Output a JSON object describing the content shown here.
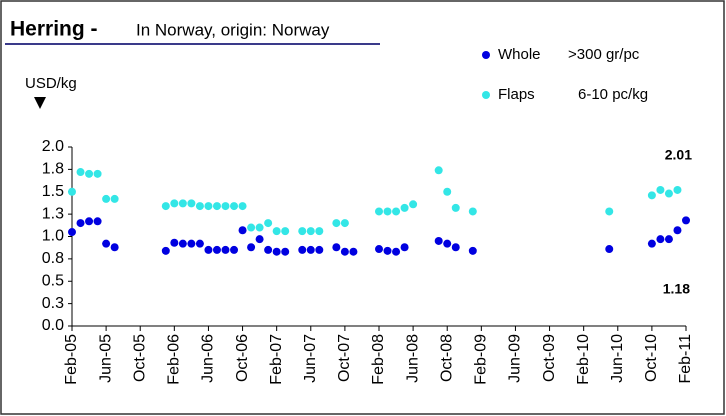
{
  "chart_data": {
    "type": "scatter",
    "title": "Herring -",
    "subtitle": "In Norway, origin: Norway",
    "y_label": "USD/kg",
    "annotations": [
      "2.01",
      "1.18"
    ],
    "categories": [
      "Feb-05",
      null,
      null,
      null,
      "Jun-05",
      null,
      null,
      null,
      "Oct-05",
      null,
      null,
      null,
      "Feb-06",
      null,
      null,
      null,
      "Jun-06",
      null,
      null,
      null,
      "Oct-06",
      null,
      null,
      null,
      "Feb-07",
      null,
      null,
      null,
      "Jun-07",
      null,
      null,
      null,
      "Oct-07",
      null,
      null,
      null,
      "Feb-08",
      null,
      null,
      null,
      "Jun-08",
      null,
      null,
      null,
      "Oct-08",
      null,
      null,
      null,
      "Feb-09",
      null,
      null,
      null,
      "Jun-09",
      null,
      null,
      null,
      "Oct-09",
      null,
      null,
      null,
      "Feb-10",
      null,
      null,
      null,
      "Jun-10",
      null,
      null,
      null,
      "Oct-10",
      null,
      null,
      null,
      "Feb-11"
    ],
    "series": [
      {
        "name": "Whole",
        "note": ">300 gr/pc",
        "color": "#0000e0",
        "values": [
          1.05,
          1.15,
          1.17,
          1.17,
          0.92,
          0.88,
          null,
          null,
          null,
          null,
          null,
          0.84,
          0.93,
          0.92,
          0.92,
          0.92,
          0.85,
          0.85,
          0.85,
          0.85,
          1.07,
          0.88,
          0.97,
          0.85,
          0.83,
          0.83,
          null,
          0.85,
          0.85,
          0.85,
          null,
          0.88,
          0.83,
          0.83,
          null,
          null,
          0.86,
          0.84,
          0.83,
          0.88,
          null,
          null,
          null,
          0.95,
          0.92,
          0.88,
          null,
          0.84,
          null,
          null,
          null,
          null,
          null,
          null,
          null,
          null,
          null,
          null,
          null,
          null,
          null,
          null,
          null,
          0.86,
          null,
          null,
          null,
          null,
          0.92,
          0.97,
          0.97,
          1.07,
          1.18
        ]
      },
      {
        "name": "Flaps",
        "note": "6-10 pc/kg",
        "color": "#33e6e6",
        "values": [
          1.5,
          1.72,
          1.7,
          1.7,
          1.42,
          1.42,
          null,
          null,
          null,
          null,
          null,
          1.34,
          1.37,
          1.37,
          1.37,
          1.34,
          1.34,
          1.34,
          1.34,
          1.34,
          1.34,
          1.1,
          1.1,
          1.15,
          1.06,
          1.06,
          null,
          1.06,
          1.06,
          1.06,
          null,
          1.15,
          1.15,
          null,
          null,
          null,
          1.28,
          1.28,
          1.28,
          1.32,
          1.36,
          null,
          null,
          1.74,
          1.5,
          1.32,
          null,
          1.28,
          null,
          null,
          null,
          null,
          null,
          null,
          null,
          null,
          null,
          null,
          null,
          null,
          null,
          null,
          null,
          1.28,
          null,
          null,
          null,
          null,
          1.46,
          1.52,
          1.48,
          1.52,
          null
        ]
      }
    ],
    "ylim": [
      0,
      2
    ],
    "yticks": [
      {
        "value": 0,
        "label": "0.0"
      },
      {
        "value": 0.25,
        "label": "0.3"
      },
      {
        "value": 0.5,
        "label": "0.5"
      },
      {
        "value": 0.75,
        "label": "0.8"
      },
      {
        "value": 1,
        "label": "1.0"
      },
      {
        "value": 1.25,
        "label": "1.3"
      },
      {
        "value": 1.5,
        "label": "1.5"
      },
      {
        "value": 1.75,
        "label": "1.8"
      },
      {
        "value": 2,
        "label": "2.0"
      }
    ],
    "grid": false
  }
}
